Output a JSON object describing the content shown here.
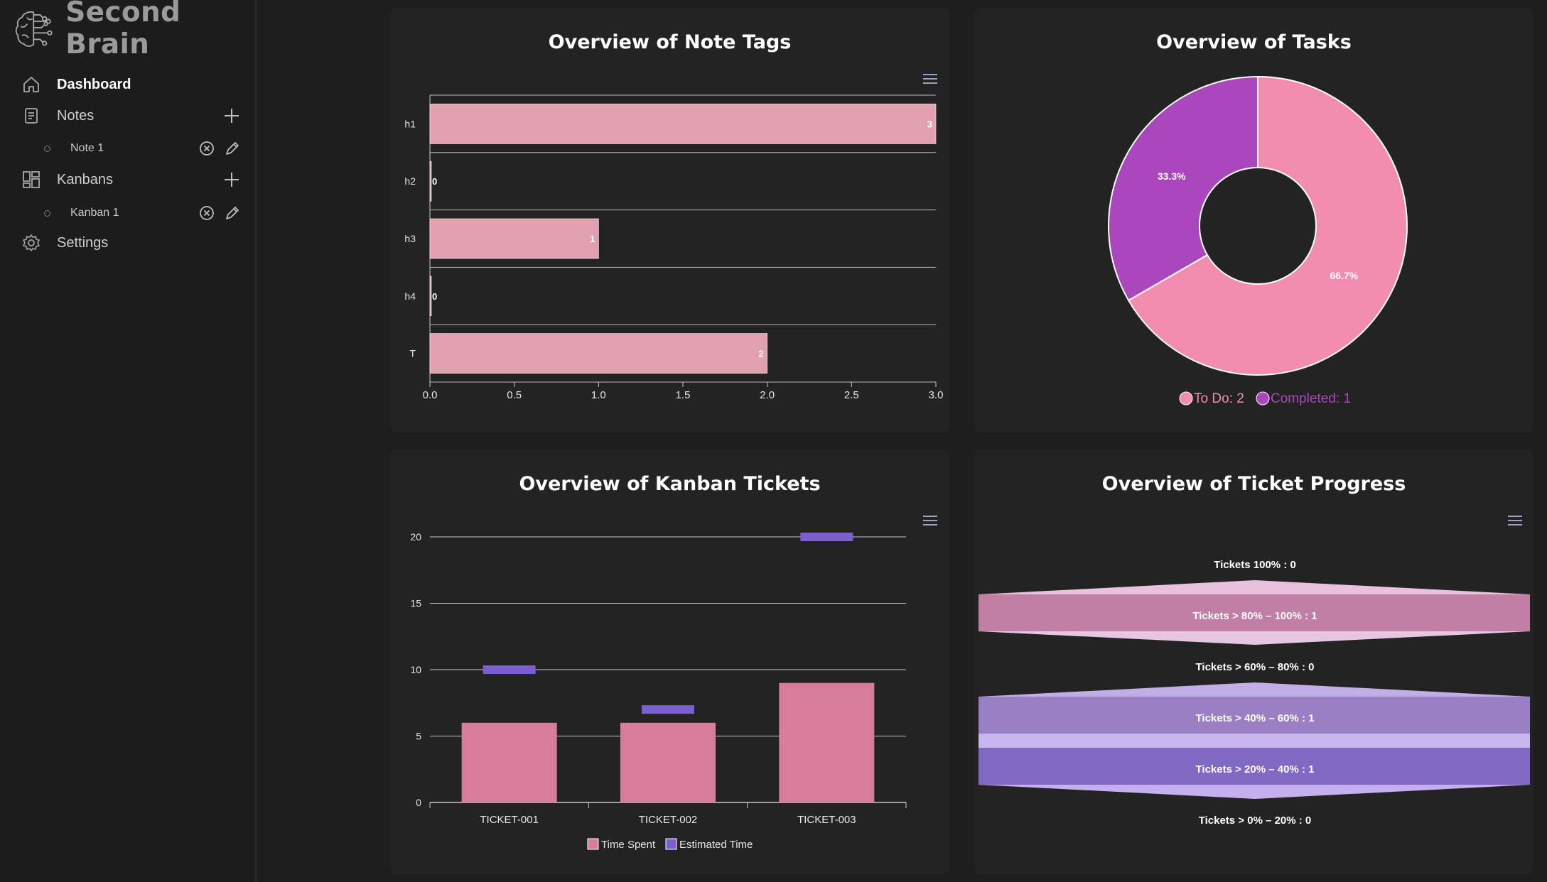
{
  "app": {
    "name": "Second Brain"
  },
  "sidebar": {
    "dashboard": "Dashboard",
    "notes": "Notes",
    "note_items": [
      "Note 1"
    ],
    "kanbans": "Kanbans",
    "kanban_items": [
      "Kanban 1"
    ],
    "settings": "Settings"
  },
  "colors": {
    "pink_bar": "#e1a0b0",
    "pink_donut": "#f28db0",
    "purple_donut": "#ab47bc",
    "time_spent": "#d87c9c",
    "estimated": "#7b5fcf"
  },
  "cards": {
    "note_tags": {
      "title": "Overview of Note Tags",
      "chart_data": {
        "type": "bar",
        "orientation": "horizontal",
        "categories": [
          "h1",
          "h2",
          "h3",
          "h4",
          "T"
        ],
        "values": [
          3,
          0,
          1,
          0,
          2
        ],
        "xlim": [
          0,
          3
        ],
        "xticks": [
          "0.0",
          "0.5",
          "1.0",
          "1.5",
          "2.0",
          "2.5",
          "3.0"
        ],
        "data_labels": true
      }
    },
    "tasks": {
      "title": "Overview of Tasks",
      "chart_data": {
        "type": "pie",
        "variant": "donut",
        "slices": [
          {
            "label": "To Do",
            "value": 2,
            "percent": "66.7%",
            "color": "#f28db0"
          },
          {
            "label": "Completed",
            "value": 1,
            "percent": "33.3%",
            "color": "#ab47bc"
          }
        ],
        "legend": [
          "To Do: 2",
          "Completed: 1"
        ],
        "legend_position": "bottom"
      }
    },
    "kanban_tickets": {
      "title": "Overview of Kanban Tickets",
      "chart_data": {
        "type": "bar",
        "categories": [
          "TICKET-001",
          "TICKET-002",
          "TICKET-003"
        ],
        "series": [
          {
            "name": "Time Spent",
            "type": "bar",
            "values": [
              6,
              6,
              9
            ],
            "color": "#d87c9c"
          },
          {
            "name": "Estimated Time",
            "type": "marker",
            "values": [
              10,
              7,
              20
            ],
            "color": "#7b5fcf"
          }
        ],
        "ylim": [
          0,
          20
        ],
        "yticks": [
          "0",
          "5",
          "10",
          "15",
          "20"
        ],
        "legend_position": "bottom"
      }
    },
    "ticket_progress": {
      "title": "Overview of Ticket Progress",
      "chart_data": {
        "type": "funnel",
        "levels": [
          {
            "label": "Tickets 100% : 0",
            "value": 0
          },
          {
            "label": "Tickets > 80% – 100% : 1",
            "value": 1
          },
          {
            "label": "Tickets > 60% – 80% : 0",
            "value": 0
          },
          {
            "label": "Tickets > 40% – 60% : 1",
            "value": 1
          },
          {
            "label": "Tickets > 20% – 40% : 1",
            "value": 1
          },
          {
            "label": "Tickets > 0% – 20% : 0",
            "value": 0
          }
        ]
      }
    }
  }
}
